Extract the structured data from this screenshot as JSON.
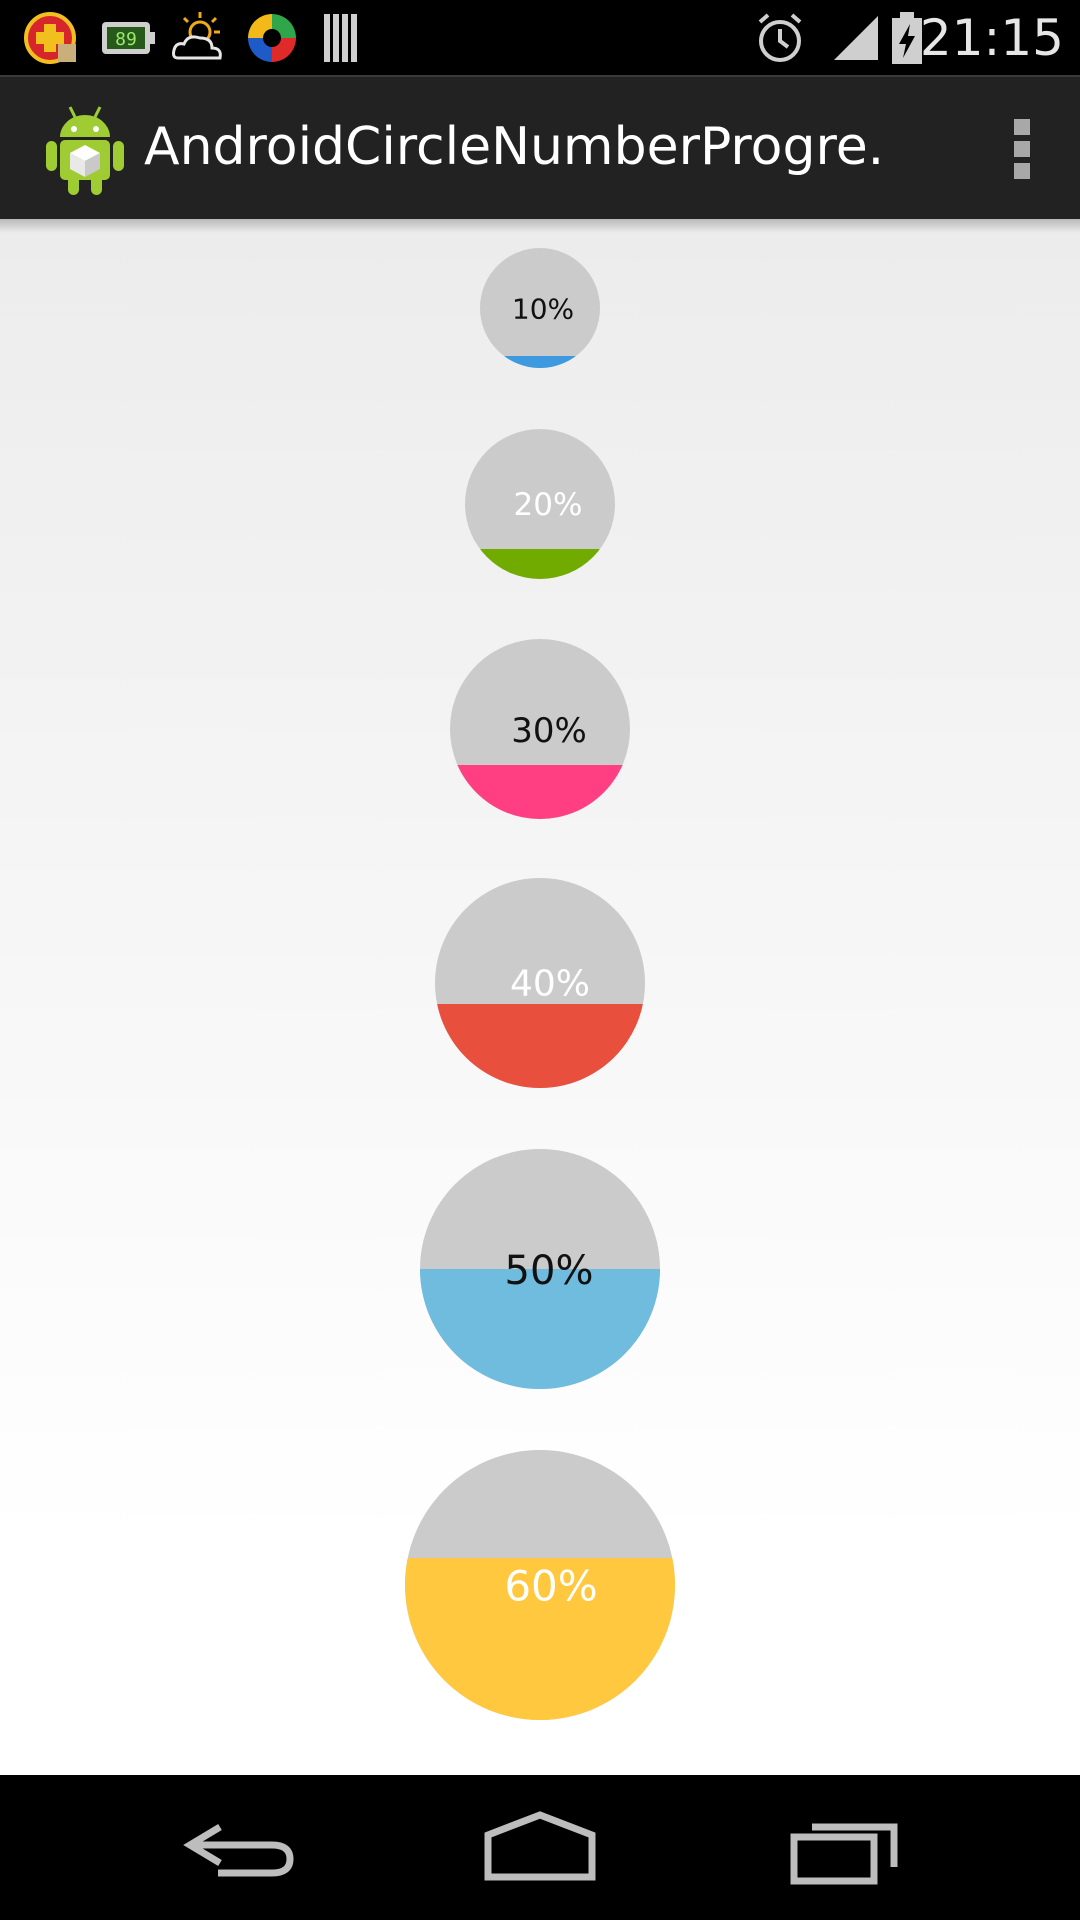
{
  "status_bar": {
    "time": "21:15",
    "notification_icons": [
      "firstaid-kit-icon",
      "battery-89-icon",
      "weather-icon",
      "colorful-app-icon",
      "barcode-icon"
    ],
    "battery_badge": "89",
    "system_icons": [
      "alarm-icon",
      "signal-icon",
      "battery-charging-icon"
    ]
  },
  "action_bar": {
    "title": "AndroidCircleNumberProgre.",
    "app_icon": "android-robot-icon",
    "overflow_icon": "overflow-menu-icon"
  },
  "progress_circles": [
    {
      "label": "10%",
      "progress": 0.1,
      "fill_color": "#3d9ade",
      "text_color": "#111111"
    },
    {
      "label": "20%",
      "progress": 0.2,
      "fill_color": "#72ab00",
      "text_color": "#ffffff"
    },
    {
      "label": "30%",
      "progress": 0.3,
      "fill_color": "#ff3f82",
      "text_color": "#111111"
    },
    {
      "label": "40%",
      "progress": 0.4,
      "fill_color": "#e94f3d",
      "text_color": "#ffffff"
    },
    {
      "label": "50%",
      "progress": 0.5,
      "fill_color": "#6fbcdf",
      "text_color": "#111111"
    },
    {
      "label": "60%",
      "progress": 0.6,
      "fill_color": "#ffc83e",
      "text_color": "#ffffff"
    }
  ],
  "colors": {
    "track": "#cbcbcb"
  },
  "nav_bar": {
    "back_icon": "back-icon",
    "home_icon": "home-icon",
    "recents_icon": "recents-icon"
  }
}
